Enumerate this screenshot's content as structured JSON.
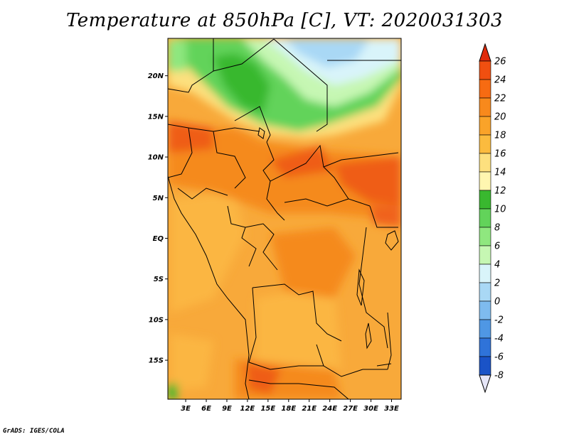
{
  "title": "Temperature at 850hPa [C], VT: 2020031303",
  "credit": "GrADS: IGES/COLA",
  "map": {
    "lat_ticks": [
      {
        "lat": 20,
        "label": "20N"
      },
      {
        "lat": 15,
        "label": "15N"
      },
      {
        "lat": 10,
        "label": "10N"
      },
      {
        "lat": 5,
        "label": "5N"
      },
      {
        "lat": 0,
        "label": "EQ"
      },
      {
        "lat": -5,
        "label": "5S"
      },
      {
        "lat": -10,
        "label": "10S"
      },
      {
        "lat": -15,
        "label": "15S"
      }
    ],
    "lon_ticks": [
      {
        "lon": 3,
        "label": "3E"
      },
      {
        "lon": 6,
        "label": "6E"
      },
      {
        "lon": 9,
        "label": "9E"
      },
      {
        "lon": 12,
        "label": "12E"
      },
      {
        "lon": 15,
        "label": "15E"
      },
      {
        "lon": 18,
        "label": "18E"
      },
      {
        "lon": 21,
        "label": "21E"
      },
      {
        "lon": 24,
        "label": "24E"
      },
      {
        "lon": 27,
        "label": "27E"
      },
      {
        "lon": 30,
        "label": "30E"
      },
      {
        "lon": 33,
        "label": "33E"
      }
    ],
    "lon_range": [
      0.4,
      34.4
    ],
    "lat_range": [
      -19.8,
      24.6
    ]
  },
  "colorbar": {
    "levels": [
      26,
      24,
      22,
      20,
      18,
      16,
      14,
      12,
      10,
      8,
      6,
      4,
      2,
      0,
      -2,
      -4,
      -6,
      -8
    ],
    "labels": [
      "26",
      "24",
      "22",
      "20",
      "18",
      "16",
      "14",
      "12",
      "10",
      "8",
      "6",
      "4",
      "2",
      "0",
      "-2",
      "-4",
      "-6",
      "-8"
    ],
    "colors_top_to_bottom": [
      "#e02a0a",
      "#f04f10",
      "#f76b12",
      "#f8891c",
      "#faa329",
      "#fbbb3e",
      "#fde07e",
      "#fff6b0",
      "#39b82f",
      "#62d35a",
      "#8fe77f",
      "#c6f7b3",
      "#d9f4fa",
      "#a9d8f5",
      "#7ebbee",
      "#4f97e4",
      "#2f73d9",
      "#1a53c7",
      "#0c32a5",
      "#0a1a70",
      "#e6e6f8"
    ]
  }
}
